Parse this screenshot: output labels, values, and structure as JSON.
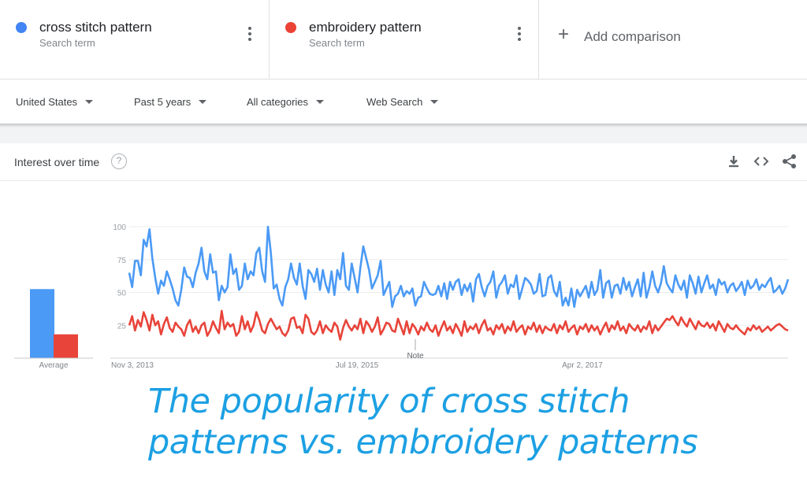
{
  "search_terms": [
    {
      "name": "cross stitch pattern",
      "subtitle": "Search term",
      "color": "#4285f4"
    },
    {
      "name": "embroidery pattern",
      "subtitle": "Search term",
      "color": "#ea4335"
    }
  ],
  "add_comparison": {
    "label": "Add comparison"
  },
  "filters": {
    "region": "United States",
    "time_range": "Past 5 years",
    "category": "All categories",
    "search_type": "Web Search"
  },
  "card": {
    "title": "Interest over time",
    "help": "?"
  },
  "chart_data": {
    "type": "line",
    "y_ticks": [
      100,
      75,
      50,
      25
    ],
    "ylim": [
      0,
      100
    ],
    "x_tick_labels": [
      "Nov 3, 2013",
      "Jul 19, 2015",
      "Apr 2, 2017"
    ],
    "average_label": "Average",
    "note_label": "Note",
    "grid": true,
    "series": [
      {
        "name": "cross stitch pattern",
        "color": "#4b9af5",
        "average": 58,
        "values": [
          65,
          54,
          74,
          74,
          63,
          90,
          85,
          98,
          76,
          61,
          49,
          59,
          55,
          66,
          60,
          53,
          44,
          40,
          52,
          69,
          62,
          61,
          54,
          65,
          72,
          84,
          66,
          60,
          79,
          65,
          66,
          44,
          55,
          50,
          54,
          79,
          64,
          68,
          52,
          55,
          72,
          60,
          66,
          63,
          80,
          84,
          66,
          58,
          100,
          80,
          53,
          56,
          45,
          40,
          54,
          60,
          72,
          61,
          56,
          72,
          55,
          45,
          67,
          64,
          58,
          68,
          52,
          67,
          56,
          50,
          66,
          48,
          67,
          60,
          80,
          55,
          52,
          72,
          61,
          50,
          69,
          85,
          76,
          67,
          53,
          58,
          63,
          74,
          48,
          53,
          58,
          39,
          47,
          49,
          55,
          47,
          51,
          49,
          53,
          40,
          46,
          47,
          58,
          53,
          49,
          48,
          49,
          55,
          47,
          57,
          45,
          58,
          52,
          58,
          60,
          48,
          56,
          51,
          57,
          43,
          60,
          64,
          54,
          47,
          55,
          58,
          66,
          46,
          55,
          58,
          63,
          49,
          56,
          54,
          63,
          45,
          53,
          61,
          59,
          56,
          49,
          51,
          64,
          47,
          48,
          61,
          63,
          51,
          47,
          58,
          40,
          46,
          40,
          53,
          39,
          52,
          47,
          51,
          55,
          46,
          58,
          48,
          52,
          67,
          46,
          57,
          59,
          46,
          55,
          56,
          49,
          61,
          52,
          58,
          47,
          54,
          60,
          47,
          65,
          46,
          54,
          66,
          55,
          50,
          57,
          70,
          57,
          53,
          50,
          63,
          56,
          52,
          59,
          46,
          63,
          57,
          49,
          62,
          50,
          57,
          63,
          53,
          56,
          48,
          60,
          56,
          58,
          50,
          55,
          57,
          51,
          54,
          58,
          48,
          59,
          53,
          55,
          60,
          52,
          56,
          54,
          58,
          61,
          50,
          52,
          55,
          49,
          53,
          60
        ]
      },
      {
        "name": "embroidery pattern",
        "color": "#e8443a",
        "average": 20,
        "values": [
          25,
          32,
          21,
          29,
          24,
          35,
          29,
          21,
          33,
          25,
          28,
          18,
          26,
          31,
          23,
          20,
          27,
          24,
          22,
          17,
          25,
          29,
          20,
          24,
          19,
          25,
          27,
          17,
          21,
          28,
          23,
          19,
          36,
          22,
          27,
          24,
          26,
          17,
          20,
          32,
          22,
          28,
          20,
          25,
          35,
          29,
          21,
          19,
          26,
          30,
          26,
          22,
          24,
          19,
          17,
          21,
          30,
          31,
          23,
          24,
          19,
          33,
          30,
          20,
          18,
          21,
          28,
          19,
          25,
          22,
          20,
          27,
          24,
          14,
          23,
          29,
          24,
          21,
          25,
          22,
          30,
          19,
          28,
          25,
          20,
          24,
          31,
          18,
          22,
          27,
          26,
          21,
          20,
          30,
          24,
          18,
          28,
          19,
          26,
          23,
          18,
          24,
          21,
          27,
          22,
          20,
          25,
          17,
          23,
          28,
          21,
          24,
          19,
          26,
          22,
          17,
          28,
          20,
          24,
          22,
          26,
          19,
          25,
          29,
          21,
          23,
          18,
          25,
          22,
          26,
          19,
          24,
          21,
          28,
          20,
          23,
          25,
          18,
          24,
          22,
          27,
          20,
          25,
          19,
          24,
          22,
          21,
          26,
          19,
          25,
          22,
          28,
          20,
          23,
          25,
          18,
          24,
          22,
          26,
          20,
          25,
          21,
          24,
          18,
          23,
          27,
          20,
          25,
          22,
          28,
          21,
          24,
          19,
          26,
          23,
          21,
          25,
          20,
          24,
          22,
          28,
          19,
          25,
          21,
          24,
          27,
          30,
          29,
          32,
          28,
          25,
          31,
          27,
          24,
          30,
          26,
          22,
          28,
          25,
          24,
          27,
          23,
          26,
          21,
          28,
          24,
          20,
          26,
          23,
          22,
          25,
          22,
          20,
          18,
          23,
          21,
          25,
          22,
          24,
          20,
          22,
          24,
          21,
          23,
          25,
          26,
          24,
          22,
          21
        ]
      }
    ]
  },
  "caption": {
    "line1": "The popularity of cross stitch",
    "line2": "patterns vs. embroidery patterns"
  }
}
